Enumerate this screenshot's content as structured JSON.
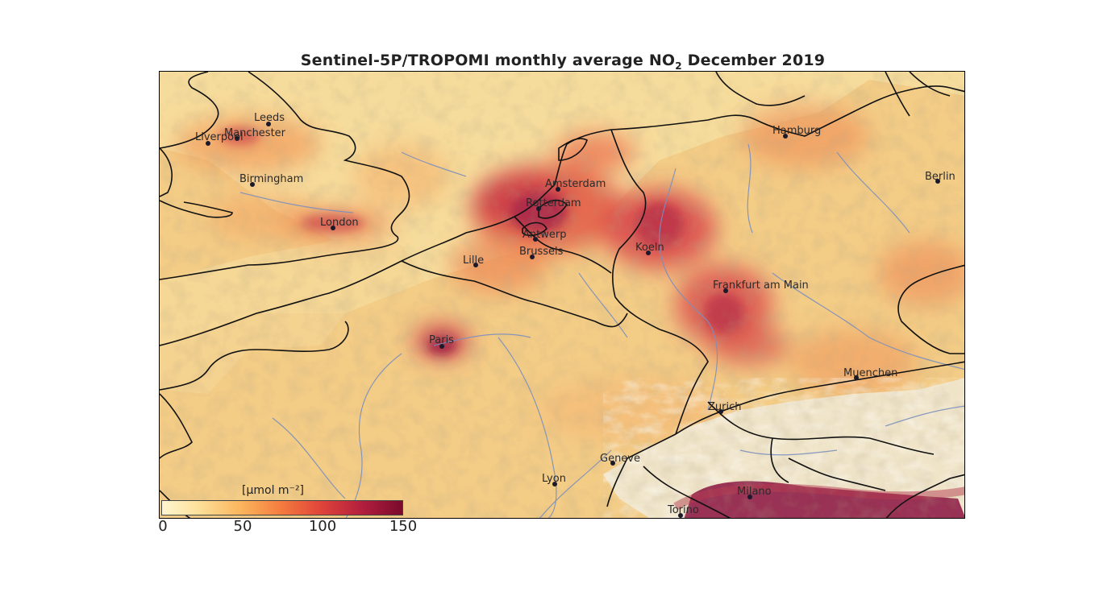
{
  "title": {
    "prefix": "Sentinel-5P/TROPOMI monthly average NO",
    "subscript": "2",
    "suffix": " December 2019"
  },
  "colorbar": {
    "label": "[μmol m⁻²]",
    "ticks": [
      "0",
      "50",
      "100",
      "150"
    ],
    "min": 0,
    "max": 150,
    "colors": [
      "#fff6d0",
      "#fde09a",
      "#fbb45c",
      "#f47a3e",
      "#e0443a",
      "#b31f3e",
      "#7a0a2c"
    ]
  },
  "cities": [
    {
      "id": "leeds",
      "name": "Leeds"
    },
    {
      "id": "manchester",
      "name": "Manchester"
    },
    {
      "id": "liverpool",
      "name": "Liverpool"
    },
    {
      "id": "birmingham",
      "name": "Birmingham"
    },
    {
      "id": "london",
      "name": "London"
    },
    {
      "id": "amsterdam",
      "name": "Amsterdam"
    },
    {
      "id": "rotterdam",
      "name": "Rotterdam"
    },
    {
      "id": "antwerp",
      "name": "Antwerp"
    },
    {
      "id": "brussels",
      "name": "Brussels"
    },
    {
      "id": "lille",
      "name": "Lille"
    },
    {
      "id": "paris",
      "name": "Paris"
    },
    {
      "id": "koeln",
      "name": "Koeln"
    },
    {
      "id": "frankfurt",
      "name": "Frankfurt am Main"
    },
    {
      "id": "hamburg",
      "name": "Hamburg"
    },
    {
      "id": "berlin",
      "name": "Berlin"
    },
    {
      "id": "muenchen",
      "name": "Muenchen"
    },
    {
      "id": "zurich",
      "name": "Zurich"
    },
    {
      "id": "geneve",
      "name": "Geneve"
    },
    {
      "id": "lyon",
      "name": "Lyon"
    },
    {
      "id": "milano",
      "name": "Milano"
    },
    {
      "id": "torino",
      "name": "Torino"
    }
  ]
}
